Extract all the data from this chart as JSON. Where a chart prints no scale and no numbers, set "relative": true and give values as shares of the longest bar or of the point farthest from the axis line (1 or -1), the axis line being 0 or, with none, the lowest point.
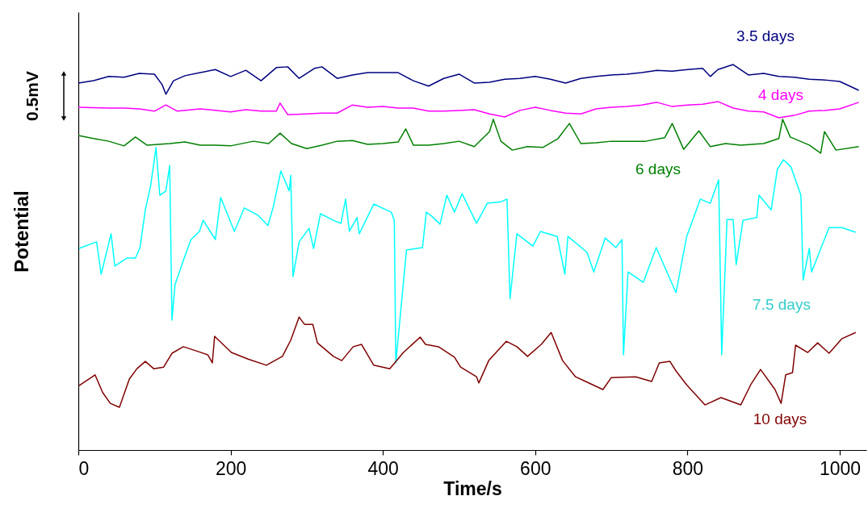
{
  "chart_data": {
    "type": "line",
    "xlabel": "Time/s",
    "ylabel": "Potential",
    "xlim": [
      0,
      1035
    ],
    "xticks": [
      0,
      200,
      400,
      600,
      800,
      1000
    ],
    "relative": true,
    "grid": false,
    "legend": false,
    "annotations": [
      "0.5mV"
    ],
    "series": [
      {
        "name": "3.5 days",
        "color": "#000080",
        "x": [
          0,
          20,
          40,
          60,
          80,
          100,
          110,
          115,
          125,
          140,
          160,
          180,
          200,
          220,
          240,
          260,
          275,
          290,
          310,
          320,
          340,
          360,
          380,
          420,
          440,
          460,
          480,
          500,
          520,
          540,
          560,
          580,
          600,
          620,
          640,
          660,
          680,
          700,
          720,
          740,
          760,
          780,
          800,
          820,
          830,
          840,
          860,
          880,
          900,
          920,
          940,
          960,
          980,
          1000,
          1025
        ],
        "values": [
          0.952,
          0.958,
          0.969,
          0.967,
          0.977,
          0.975,
          0.948,
          0.923,
          0.958,
          0.971,
          0.979,
          0.987,
          0.969,
          0.985,
          0.958,
          0.992,
          0.994,
          0.964,
          0.99,
          0.994,
          0.964,
          0.973,
          0.979,
          0.979,
          0.958,
          0.944,
          0.964,
          0.975,
          0.952,
          0.954,
          0.962,
          0.964,
          0.969,
          0.962,
          0.952,
          0.964,
          0.969,
          0.973,
          0.975,
          0.979,
          0.985,
          0.983,
          0.987,
          0.99,
          0.969,
          0.987,
          1.0,
          0.973,
          0.977,
          0.969,
          0.967,
          0.962,
          0.96,
          0.956,
          0.933
        ]
      },
      {
        "name": "4 days",
        "color": "#ff00ff",
        "x": [
          0,
          40,
          60,
          80,
          100,
          115,
          130,
          160,
          200,
          220,
          240,
          260,
          265,
          275,
          300,
          320,
          340,
          360,
          380,
          400,
          420,
          440,
          460,
          480,
          500,
          520,
          540,
          560,
          580,
          600,
          620,
          640,
          660,
          680,
          700,
          720,
          740,
          760,
          780,
          800,
          820,
          840,
          860,
          880,
          900,
          920,
          940,
          960,
          980,
          1000,
          1025
        ],
        "values": [
          0.889,
          0.887,
          0.887,
          0.885,
          0.879,
          0.895,
          0.879,
          0.885,
          0.877,
          0.883,
          0.879,
          0.879,
          0.9,
          0.87,
          0.872,
          0.874,
          0.874,
          0.895,
          0.889,
          0.891,
          0.887,
          0.887,
          0.879,
          0.879,
          0.881,
          0.883,
          0.872,
          0.864,
          0.881,
          0.889,
          0.881,
          0.874,
          0.872,
          0.885,
          0.889,
          0.891,
          0.895,
          0.902,
          0.891,
          0.895,
          0.897,
          0.904,
          0.887,
          0.879,
          0.877,
          0.862,
          0.868,
          0.879,
          0.881,
          0.885,
          0.902
        ]
      },
      {
        "name": "6 days",
        "color": "#008000",
        "x": [
          0,
          20,
          40,
          60,
          75,
          90,
          120,
          140,
          160,
          180,
          200,
          230,
          250,
          265,
          280,
          300,
          320,
          340,
          360,
          380,
          400,
          420,
          430,
          440,
          460,
          480,
          500,
          520,
          540,
          545,
          555,
          570,
          590,
          610,
          630,
          645,
          660,
          680,
          700,
          720,
          745,
          770,
          780,
          795,
          815,
          830,
          850,
          870,
          900,
          920,
          925,
          935,
          960,
          975,
          980,
          995,
          1025
        ],
        "values": [
          0.816,
          0.808,
          0.801,
          0.789,
          0.812,
          0.791,
          0.795,
          0.799,
          0.791,
          0.791,
          0.789,
          0.801,
          0.795,
          0.822,
          0.795,
          0.782,
          0.791,
          0.801,
          0.803,
          0.793,
          0.795,
          0.799,
          0.833,
          0.791,
          0.791,
          0.795,
          0.801,
          0.787,
          0.826,
          0.858,
          0.801,
          0.778,
          0.787,
          0.785,
          0.808,
          0.847,
          0.795,
          0.797,
          0.801,
          0.801,
          0.801,
          0.81,
          0.847,
          0.78,
          0.828,
          0.787,
          0.795,
          0.791,
          0.795,
          0.808,
          0.858,
          0.812,
          0.791,
          0.77,
          0.826,
          0.778,
          0.787
        ]
      },
      {
        "name": "7.5 days",
        "color": "#00ffff",
        "x": [
          1,
          24,
          30,
          43,
          48,
          64,
          75,
          81,
          88,
          95,
          102,
          107,
          115,
          120,
          123,
          127,
          138,
          148,
          159,
          164,
          180,
          187,
          205,
          218,
          236,
          249,
          256,
          266,
          277,
          279,
          282,
          290,
          303,
          309,
          318,
          335,
          345,
          351,
          356,
          366,
          369,
          388,
          411,
          415,
          417,
          431,
          452,
          457,
          464,
          475,
          484,
          494,
          504,
          523,
          537,
          555,
          563,
          567,
          576,
          597,
          607,
          629,
          639,
          643,
          668,
          677,
          692,
          706,
          714,
          716,
          722,
          742,
          759,
          785,
          799,
          817,
          830,
          841,
          845,
          852,
          860,
          864,
          873,
          891,
          894,
          910,
          918,
          926,
          936,
          949,
          952,
          960,
          963,
          986,
          1003,
          1021
        ],
        "values": [
          0.523,
          0.54,
          0.456,
          0.561,
          0.477,
          0.498,
          0.498,
          0.525,
          0.623,
          0.686,
          0.785,
          0.661,
          0.672,
          0.738,
          0.337,
          0.429,
          0.492,
          0.546,
          0.567,
          0.596,
          0.546,
          0.655,
          0.567,
          0.628,
          0.609,
          0.582,
          0.63,
          0.724,
          0.672,
          0.713,
          0.45,
          0.54,
          0.575,
          0.523,
          0.613,
          0.596,
          0.588,
          0.651,
          0.567,
          0.603,
          0.561,
          0.638,
          0.617,
          0.596,
          0.226,
          0.519,
          0.525,
          0.617,
          0.607,
          0.586,
          0.661,
          0.617,
          0.665,
          0.588,
          0.64,
          0.644,
          0.651,
          0.393,
          0.561,
          0.529,
          0.567,
          0.554,
          0.456,
          0.554,
          0.513,
          0.462,
          0.55,
          0.525,
          0.546,
          0.247,
          0.462,
          0.435,
          0.525,
          0.408,
          0.554,
          0.651,
          0.64,
          0.701,
          0.247,
          0.598,
          0.598,
          0.481,
          0.596,
          0.603,
          0.661,
          0.623,
          0.728,
          0.753,
          0.734,
          0.661,
          0.441,
          0.523,
          0.462,
          0.577,
          0.577,
          0.565
        ]
      },
      {
        "name": "10 days",
        "color": "#800000",
        "x": [
          1,
          22,
          32,
          42,
          54,
          67,
          77,
          88,
          99,
          112,
          123,
          138,
          155,
          170,
          176,
          179,
          201,
          223,
          247,
          268,
          279,
          290,
          297,
          308,
          314,
          335,
          346,
          361,
          372,
          388,
          409,
          427,
          449,
          456,
          473,
          494,
          502,
          523,
          526,
          539,
          562,
          576,
          590,
          608,
          621,
          636,
          653,
          664,
          689,
          700,
          732,
          753,
          763,
          777,
          785,
          799,
          823,
          844,
          870,
          883,
          896,
          915,
          923,
          929,
          938,
          942,
          958,
          971,
          986,
          1003,
          1021
        ],
        "values": [
          0.167,
          0.195,
          0.149,
          0.121,
          0.111,
          0.184,
          0.211,
          0.23,
          0.211,
          0.215,
          0.251,
          0.268,
          0.257,
          0.247,
          0.226,
          0.295,
          0.253,
          0.236,
          0.22,
          0.243,
          0.285,
          0.345,
          0.326,
          0.326,
          0.278,
          0.243,
          0.232,
          0.268,
          0.274,
          0.22,
          0.211,
          0.253,
          0.293,
          0.274,
          0.268,
          0.241,
          0.215,
          0.19,
          0.174,
          0.232,
          0.282,
          0.268,
          0.243,
          0.274,
          0.305,
          0.232,
          0.19,
          0.18,
          0.157,
          0.188,
          0.19,
          0.178,
          0.226,
          0.23,
          0.205,
          0.169,
          0.117,
          0.136,
          0.117,
          0.169,
          0.209,
          0.157,
          0.121,
          0.195,
          0.201,
          0.272,
          0.253,
          0.278,
          0.251,
          0.289,
          0.305
        ]
      }
    ]
  }
}
